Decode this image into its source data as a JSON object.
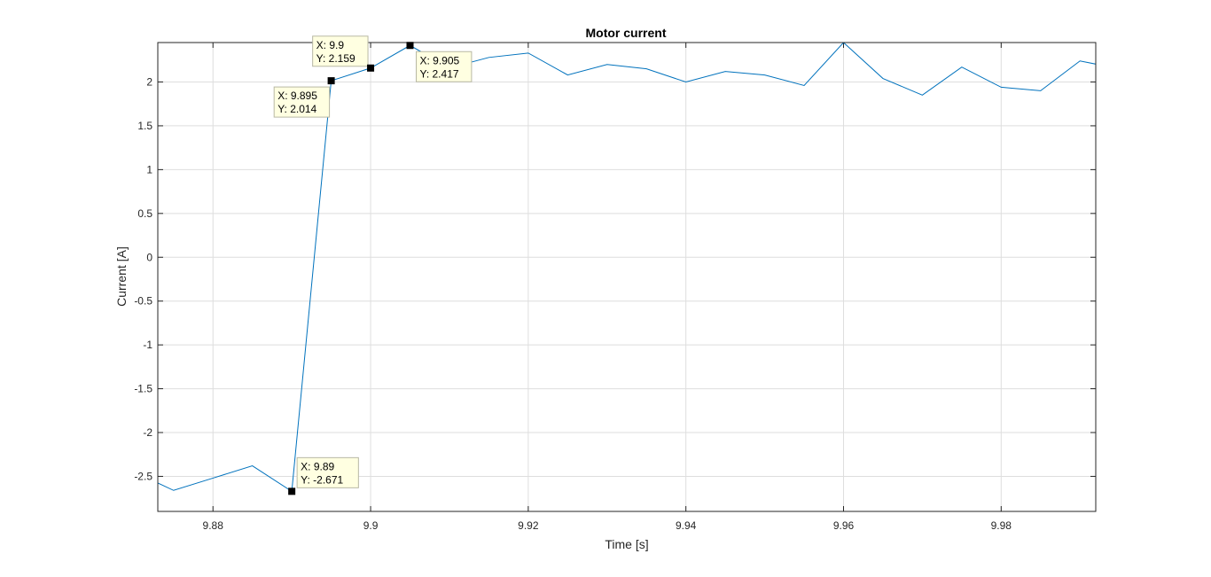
{
  "chart_data": {
    "type": "line",
    "title": "Motor current",
    "xlabel": "Time [s]",
    "ylabel": "Current [A]",
    "xlim": [
      9.873,
      9.992
    ],
    "ylim": [
      -2.9,
      2.45
    ],
    "x_ticks": [
      9.88,
      9.9,
      9.92,
      9.94,
      9.96,
      9.98
    ],
    "x_tick_labels": [
      "9.88",
      "9.9",
      "9.92",
      "9.94",
      "9.96",
      "9.98"
    ],
    "y_ticks": [
      -2.5,
      -2,
      -1.5,
      -1,
      -0.5,
      0,
      0.5,
      1,
      1.5,
      2
    ],
    "y_tick_labels": [
      "-2.5",
      "-2",
      "-1.5",
      "-1",
      "-0.5",
      "0",
      "0.5",
      "1",
      "1.5",
      "2"
    ],
    "grid": true,
    "line_color": "#0072BD",
    "series": [
      {
        "name": "",
        "x": [
          9.87,
          9.875,
          9.88,
          9.885,
          9.89,
          9.895,
          9.9,
          9.905,
          9.91,
          9.915,
          9.92,
          9.925,
          9.93,
          9.935,
          9.94,
          9.945,
          9.95,
          9.955,
          9.96,
          9.965,
          9.97,
          9.975,
          9.98,
          9.985,
          9.99,
          9.995
        ],
        "y": [
          -2.45,
          -2.66,
          -2.52,
          -2.38,
          -2.671,
          2.014,
          2.159,
          2.417,
          2.16,
          2.28,
          2.33,
          2.08,
          2.2,
          2.15,
          2.0,
          2.12,
          2.08,
          1.96,
          2.45,
          2.04,
          1.85,
          2.17,
          1.94,
          1.9,
          2.24,
          2.15
        ]
      }
    ],
    "datatips": [
      {
        "x_text": "X: 9.9",
        "y_text": "Y: 2.159",
        "x": 9.9,
        "y": 2.159,
        "placement": "upper-left"
      },
      {
        "x_text": "X: 9.895",
        "y_text": "Y: 2.014",
        "x": 9.895,
        "y": 2.014,
        "placement": "lower-left"
      },
      {
        "x_text": "X: 9.905",
        "y_text": "Y: 2.417",
        "x": 9.905,
        "y": 2.417,
        "placement": "lower-right"
      },
      {
        "x_text": "X: 9.89",
        "y_text": "Y: -2.671",
        "x": 9.89,
        "y": -2.671,
        "placement": "upper-right"
      }
    ]
  }
}
